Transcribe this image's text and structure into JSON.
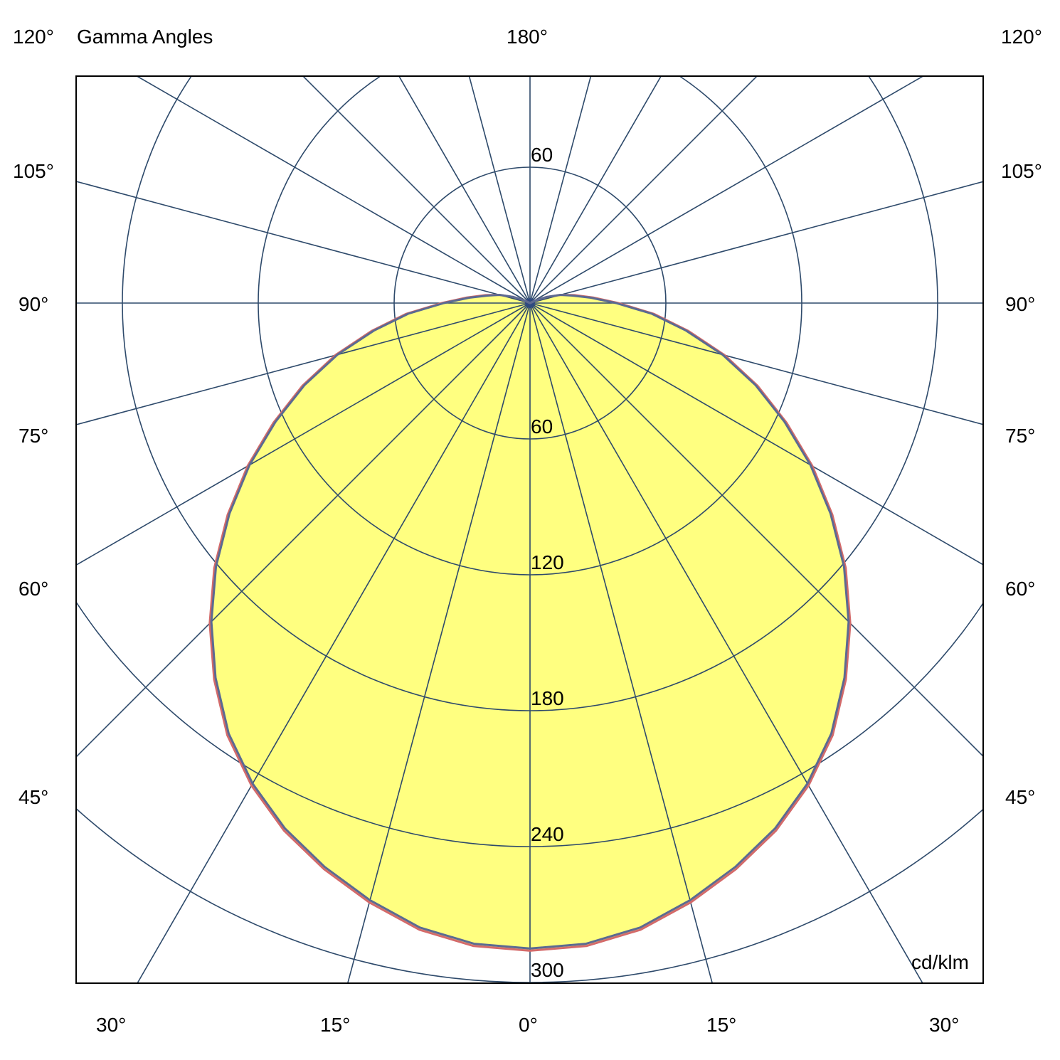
{
  "chart_data": {
    "type": "polar",
    "title": "Gamma Angles",
    "unit": "cd/klm",
    "radial_ticks": [
      60,
      120,
      180,
      240,
      300
    ],
    "radial_range": [
      0,
      300
    ],
    "angle_step_deg": 15,
    "grid": true,
    "angle_labels": {
      "top": [
        "120°",
        "180°",
        "120°"
      ],
      "left": [
        "105°",
        "90°",
        "75°",
        "60°",
        "45°"
      ],
      "right": [
        "105°",
        "90°",
        "75°",
        "60°",
        "45°"
      ],
      "bottom": [
        "30°",
        "15°",
        "0°",
        "15°",
        "30°"
      ]
    },
    "gamma": [
      0,
      5,
      10,
      15,
      20,
      25,
      30,
      35,
      40,
      45,
      50,
      55,
      60,
      65,
      70,
      75,
      80,
      85,
      90,
      95,
      100,
      105,
      110,
      115,
      120
    ],
    "series": [
      {
        "values": [
          286,
          285,
          281,
          274,
          266,
          257,
          246,
          233,
          217,
          200,
          182,
          163,
          144,
          125,
          107,
          89,
          71,
          55,
          39,
          28,
          20,
          14,
          8,
          3,
          0
        ],
        "color": "#d46a6a"
      },
      {
        "values": [
          285,
          284,
          280,
          273,
          265,
          256,
          245,
          232,
          216,
          199,
          181,
          162,
          143,
          124,
          106,
          88,
          70,
          54,
          38,
          27,
          19,
          14,
          8,
          3,
          0
        ],
        "color": "#5b6a92"
      }
    ],
    "fill_color": "#ffff80",
    "grid_color": "#2e4a6b"
  }
}
